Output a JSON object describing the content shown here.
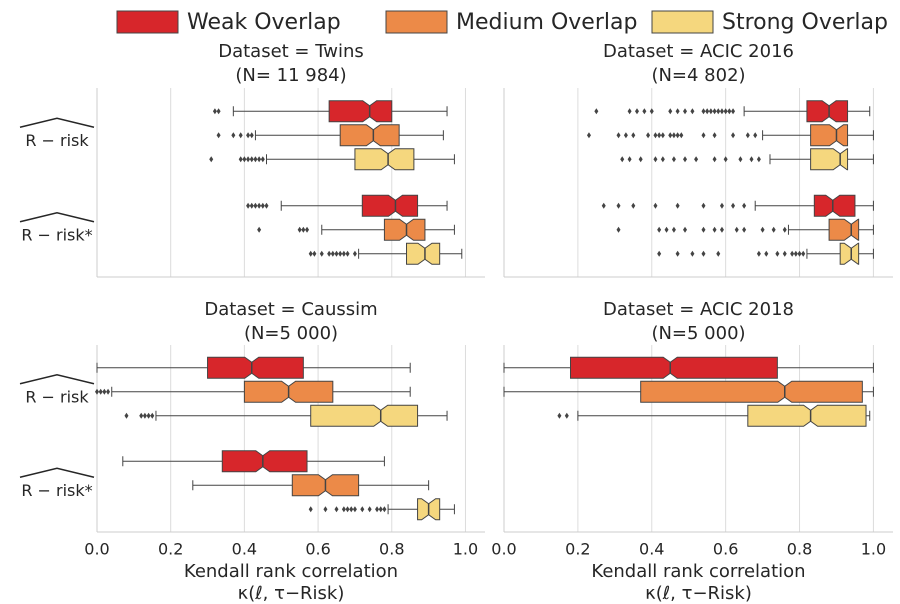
{
  "legend": [
    {
      "name": "Weak Overlap",
      "color": "#d7262b"
    },
    {
      "name": "Medium Overlap",
      "color": "#ec8a48"
    },
    {
      "name": "Strong Overlap",
      "color": "#f5d77e"
    }
  ],
  "categories": [
    "R − risk",
    "R − risk*"
  ],
  "chart_data": [
    {
      "type": "box",
      "title": "Dataset = Twins",
      "subtitle": "(N= 11 984)",
      "xlim": [
        0,
        1.053
      ],
      "xticks": [
        0,
        0.2,
        0.4,
        0.6,
        0.8,
        1
      ],
      "grid": true,
      "series": [
        {
          "boxes": [
            {
              "min": 0.37,
              "q1": 0.63,
              "median": 0.74,
              "q3": 0.8,
              "max": 0.95,
              "outliers": [
                0.32,
                0.33
              ]
            },
            {
              "min": 0.5,
              "q1": 0.72,
              "median": 0.81,
              "q3": 0.87,
              "max": 0.95,
              "outliers": [
                0.41,
                0.42,
                0.43,
                0.44,
                0.45,
                0.46
              ]
            }
          ]
        },
        {
          "boxes": [
            {
              "min": 0.43,
              "q1": 0.66,
              "median": 0.75,
              "q3": 0.82,
              "max": 0.94,
              "outliers": [
                0.33,
                0.37,
                0.39,
                0.41,
                0.42
              ]
            },
            {
              "min": 0.61,
              "q1": 0.78,
              "median": 0.84,
              "q3": 0.89,
              "max": 0.97,
              "outliers": [
                0.44,
                0.55,
                0.56,
                0.57
              ]
            }
          ]
        },
        {
          "boxes": [
            {
              "min": 0.46,
              "q1": 0.7,
              "median": 0.79,
              "q3": 0.86,
              "max": 0.97,
              "outliers": [
                0.31,
                0.39,
                0.4,
                0.41,
                0.42,
                0.43,
                0.44,
                0.45
              ]
            },
            {
              "min": 0.71,
              "q1": 0.84,
              "median": 0.89,
              "q3": 0.93,
              "max": 0.99,
              "outliers": [
                0.58,
                0.59,
                0.61,
                0.63,
                0.64,
                0.65,
                0.66,
                0.67,
                0.68,
                0.7
              ]
            }
          ]
        }
      ]
    },
    {
      "type": "box",
      "title": "Dataset = ACIC 2016",
      "subtitle": "(N=4 802)",
      "xlim": [
        0,
        1.053
      ],
      "xticks": [
        0,
        0.2,
        0.4,
        0.6,
        0.8,
        1
      ],
      "grid": true,
      "series": [
        {
          "boxes": [
            {
              "min": 0.65,
              "q1": 0.82,
              "median": 0.88,
              "q3": 0.93,
              "max": 0.99,
              "outliers": [
                0.25,
                0.34,
                0.36,
                0.38,
                0.4,
                0.45,
                0.47,
                0.49,
                0.51,
                0.54,
                0.55,
                0.56,
                0.57,
                0.58,
                0.59,
                0.6,
                0.61,
                0.62
              ]
            },
            {
              "min": 0.68,
              "q1": 0.84,
              "median": 0.89,
              "q3": 0.95,
              "max": 1,
              "outliers": [
                0.27,
                0.31,
                0.35,
                0.41,
                0.47,
                0.54,
                0.59,
                0.62,
                0.65
              ]
            }
          ]
        },
        {
          "boxes": [
            {
              "min": 0.7,
              "q1": 0.83,
              "median": 0.9,
              "q3": 0.93,
              "max": 1,
              "outliers": [
                0.23,
                0.31,
                0.33,
                0.35,
                0.39,
                0.41,
                0.42,
                0.43,
                0.45,
                0.46,
                0.47,
                0.48,
                0.54,
                0.57,
                0.62,
                0.66,
                0.68
              ]
            },
            {
              "min": 0.77,
              "q1": 0.88,
              "median": 0.94,
              "q3": 0.96,
              "max": 1,
              "outliers": [
                0.31,
                0.42,
                0.44,
                0.46,
                0.49,
                0.54,
                0.57,
                0.59,
                0.63,
                0.65,
                0.7,
                0.73,
                0.76
              ]
            }
          ]
        },
        {
          "boxes": [
            {
              "min": 0.72,
              "q1": 0.83,
              "median": 0.91,
              "q3": 0.93,
              "max": 1,
              "outliers": [
                0.32,
                0.34,
                0.37,
                0.41,
                0.43,
                0.46,
                0.49,
                0.52,
                0.57,
                0.6,
                0.64,
                0.67,
                0.69
              ]
            },
            {
              "min": 0.82,
              "q1": 0.91,
              "median": 0.94,
              "q3": 0.96,
              "max": 1,
              "outliers": [
                0.42,
                0.47,
                0.51,
                0.54,
                0.58,
                0.69,
                0.71,
                0.74,
                0.76,
                0.78,
                0.79,
                0.8,
                0.81
              ]
            }
          ]
        }
      ]
    },
    {
      "type": "box",
      "title": "Dataset = Caussim",
      "subtitle": "(N=5 000)",
      "xlim": [
        0,
        1.053
      ],
      "xticks": [
        {
          "value": 0,
          "label": "0.0"
        },
        {
          "value": 0.2,
          "label": "0.2"
        },
        {
          "value": 0.4,
          "label": "0.4"
        },
        {
          "value": 0.6,
          "label": "0.6"
        },
        {
          "value": 0.8,
          "label": "0.8"
        },
        {
          "value": 1,
          "label": "1.0"
        }
      ],
      "xlabel": [
        "Kendall rank correlation",
        "κ(ℓ, τ−Risk)"
      ],
      "grid": true,
      "series": [
        {
          "boxes": [
            {
              "min": 0,
              "q1": 0.3,
              "median": 0.42,
              "q3": 0.56,
              "max": 0.85,
              "outliers": []
            },
            {
              "min": 0.07,
              "q1": 0.34,
              "median": 0.45,
              "q3": 0.57,
              "max": 0.78,
              "outliers": []
            }
          ]
        },
        {
          "boxes": [
            {
              "min": 0.04,
              "q1": 0.4,
              "median": 0.52,
              "q3": 0.64,
              "max": 0.85,
              "outliers": [
                0,
                0.01,
                0.02,
                0.03
              ]
            },
            {
              "min": 0.26,
              "q1": 0.53,
              "median": 0.62,
              "q3": 0.71,
              "max": 0.9,
              "outliers": []
            }
          ]
        },
        {
          "boxes": [
            {
              "min": 0.16,
              "q1": 0.58,
              "median": 0.77,
              "q3": 0.87,
              "max": 0.95,
              "outliers": [
                0.08,
                0.12,
                0.13,
                0.14,
                0.15
              ]
            },
            {
              "min": 0.79,
              "q1": 0.87,
              "median": 0.9,
              "q3": 0.93,
              "max": 0.97,
              "outliers": [
                0.58,
                0.62,
                0.65,
                0.67,
                0.68,
                0.69,
                0.7,
                0.72,
                0.74,
                0.76,
                0.77,
                0.78
              ]
            }
          ]
        }
      ]
    },
    {
      "type": "box",
      "title": "Dataset = ACIC 2018",
      "subtitle": "(N=5 000)",
      "xlim": [
        0,
        1.053
      ],
      "xticks": [
        {
          "value": 0,
          "label": "0.0"
        },
        {
          "value": 0.2,
          "label": "0.2"
        },
        {
          "value": 0.4,
          "label": "0.4"
        },
        {
          "value": 0.6,
          "label": "0.6"
        },
        {
          "value": 0.8,
          "label": "0.8"
        },
        {
          "value": 1,
          "label": "1.0"
        }
      ],
      "xlabel": [
        "Kendall rank correlation",
        "κ(ℓ, τ−Risk)"
      ],
      "grid": true,
      "series": [
        {
          "boxes": [
            {
              "min": 0,
              "q1": 0.18,
              "median": 0.45,
              "q3": 0.74,
              "max": 1,
              "outliers": []
            },
            null
          ]
        },
        {
          "boxes": [
            {
              "min": 0,
              "q1": 0.37,
              "median": 0.76,
              "q3": 0.97,
              "max": 1,
              "outliers": []
            },
            null
          ]
        },
        {
          "boxes": [
            {
              "min": 0.2,
              "q1": 0.66,
              "median": 0.83,
              "q3": 0.98,
              "max": 0.99,
              "outliers": [
                0.15,
                0.17
              ]
            },
            null
          ]
        }
      ]
    }
  ]
}
